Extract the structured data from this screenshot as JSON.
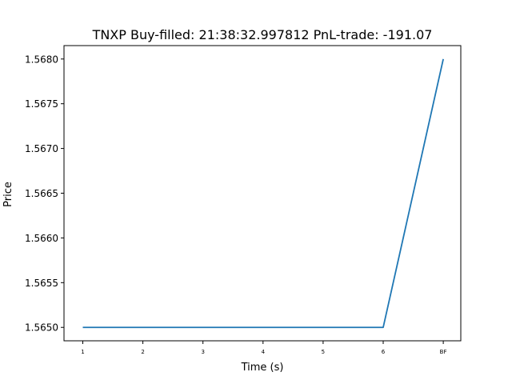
{
  "chart_data": {
    "type": "line",
    "title": "TNXP  Buy-filled:  21:38:32.997812  PnL-trade:  -191.07",
    "xlabel": "Time (s)",
    "ylabel": "Price",
    "categories": [
      "1",
      "2",
      "3",
      "4",
      "5",
      "6",
      "BF"
    ],
    "series": [
      {
        "values": [
          1.565,
          1.565,
          1.565,
          1.565,
          1.565,
          1.565,
          1.568
        ],
        "color": "#1f77b4"
      }
    ],
    "ylim": [
      1.56485,
      1.56815
    ],
    "yticks": [
      1.565,
      1.5655,
      1.566,
      1.5665,
      1.567,
      1.5675,
      1.568
    ],
    "ytick_labels": [
      "1.5650",
      "1.5655",
      "1.5660",
      "1.5665",
      "1.5670",
      "1.5675",
      "1.5680"
    ],
    "grid": false,
    "legend": "none"
  }
}
